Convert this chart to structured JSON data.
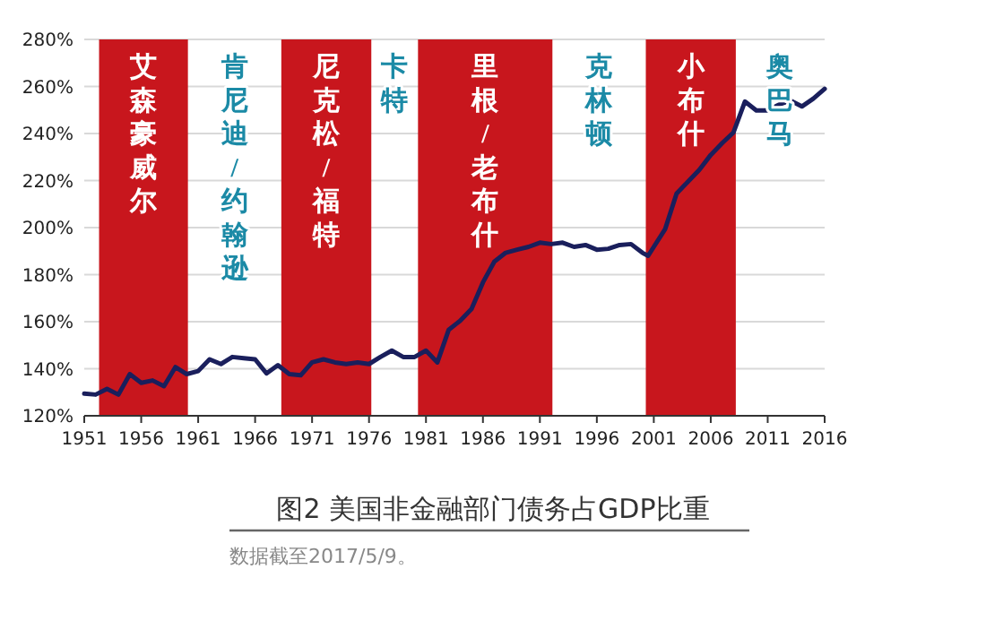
{
  "chart_data": {
    "type": "line",
    "title": "图2 美国非金融部门债务占GDP比重",
    "x": [
      1951,
      1952,
      1953,
      1954,
      1955,
      1956,
      1957,
      1958,
      1959,
      1960,
      1961,
      1962,
      1963,
      1964,
      1965,
      1966,
      1967,
      1968,
      1969,
      1970,
      1971,
      1972,
      1973,
      1974,
      1975,
      1976,
      1977,
      1978,
      1979,
      1980,
      1981,
      1982,
      1983,
      1984,
      1985,
      1986,
      1987,
      1988,
      1989,
      1990,
      1991,
      1992,
      1993,
      1994,
      1995,
      1996,
      1997,
      1998,
      1999,
      2000,
      2000.5,
      2001,
      2002,
      2003,
      2004,
      2005,
      2006,
      2007,
      2008,
      2009,
      2010,
      2011,
      2012,
      2013,
      2014,
      2015,
      2016
    ],
    "series": [
      {
        "color": "#1a1f5c",
        "values": [
          129.4,
          129,
          131.4,
          129,
          137.7,
          134,
          135,
          132.6,
          140.7,
          137.7,
          139,
          144,
          142,
          145,
          144.5,
          144,
          138,
          141.5,
          137.7,
          137.2,
          142.7,
          144,
          142.7,
          142,
          142.7,
          142,
          145,
          147.7,
          145,
          145,
          147.7,
          142.7,
          156.6,
          160.4,
          165.4,
          176.7,
          185.5,
          189.3,
          190.6,
          191.8,
          193.6,
          193,
          193.6,
          191.8,
          192.6,
          190.6,
          191,
          192.6,
          193,
          189.3,
          188,
          191.8,
          199.4,
          214.5,
          219.5,
          224.6,
          230.9,
          235.9,
          240.5,
          253.6,
          249.8,
          249.8,
          252.3,
          254,
          251.5,
          254.8,
          259
        ]
      }
    ],
    "xlim": [
      1951,
      2016
    ],
    "xticks": [
      1951,
      1956,
      1961,
      1966,
      1971,
      1976,
      1981,
      1986,
      1991,
      1996,
      2001,
      2006,
      2011,
      2016
    ],
    "ylim": [
      120,
      280
    ],
    "yticks": [
      {
        "value": 120,
        "label": "120%"
      },
      {
        "value": 140,
        "label": "140%"
      },
      {
        "value": 160,
        "label": "160%"
      },
      {
        "value": 180,
        "label": "180%"
      },
      {
        "value": 200,
        "label": "200%"
      },
      {
        "value": 220,
        "label": "220%"
      },
      {
        "value": 240,
        "label": "240%"
      },
      {
        "value": 260,
        "label": "260%"
      },
      {
        "value": 280,
        "label": "280%"
      }
    ],
    "grid": "y",
    "marker": "none",
    "line_style": "solid",
    "bands": [
      {
        "axis": "x",
        "from": 1952.3,
        "to": 1960.1,
        "label": "艾森豪威尔",
        "color": "#c8161d"
      },
      {
        "axis": "x",
        "from": 1968.3,
        "to": 1976.2,
        "label": "尼克松/福特",
        "color": "#c8161d"
      },
      {
        "axis": "x",
        "from": 1980.3,
        "to": 1992.1,
        "label": "里根/老布什",
        "color": "#c8161d"
      },
      {
        "axis": "x",
        "from": 2000.3,
        "to": 2008.2,
        "label": "小布什",
        "color": "#c8161d"
      }
    ],
    "annotations": [
      "肯尼迪/约翰逊",
      "卡特",
      "克林顿",
      "奥巴马",
      "数据截至2017/5/9。"
    ]
  }
}
